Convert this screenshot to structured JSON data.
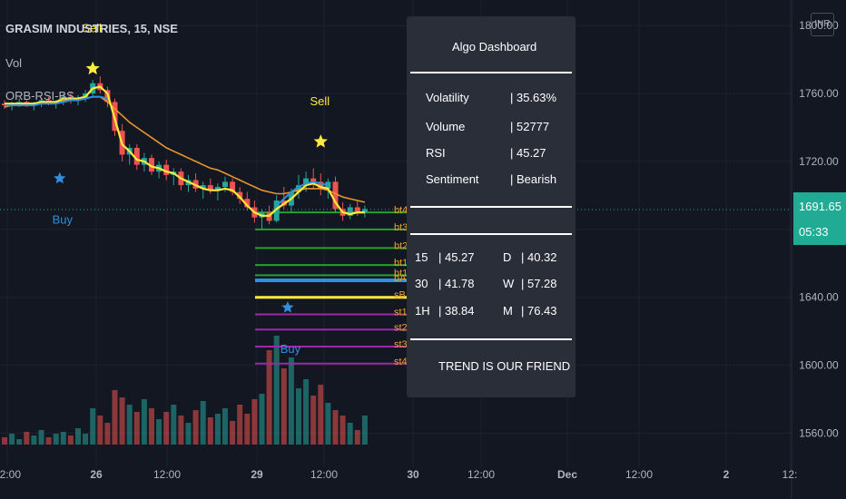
{
  "header": {
    "title": "GRASIM INDUSTRIES, 15, NSE",
    "volume_label": "Vol",
    "indicator_label": "ORB-RSI-BS"
  },
  "currency_badge": "INR",
  "price_tag": {
    "price": "1691.65",
    "countdown": "05:33"
  },
  "dashboard": {
    "title": "Algo Dashboard",
    "stats": [
      {
        "label": "Volatility",
        "value": "| 35.63%"
      },
      {
        "label": "Volume",
        "value": "| 52777"
      },
      {
        "label": "RSI",
        "value": "| 45.27"
      },
      {
        "label": "Sentiment",
        "value": "| Bearish"
      }
    ],
    "rsi_table": [
      {
        "tf": "15",
        "val": "| 45.27",
        "tf2": "D",
        "val2": "| 40.32"
      },
      {
        "tf": "30",
        "val": "| 41.78",
        "tf2": "W",
        "val2": "| 57.28"
      },
      {
        "tf": "1H",
        "val": "| 38.84",
        "tf2": "M",
        "val2": "| 76.43"
      }
    ],
    "footer": "TREND IS OUR FRIEND"
  },
  "colors": {
    "background": "#131722",
    "up": "#26a69a",
    "down": "#ef5350",
    "ema_orange": "#e8962c",
    "signal_yellow": "#ffeb3b",
    "blue_line": "#2f8fe0",
    "target_green": "#22a32a",
    "stop_purple": "#9c27b0",
    "level_label": "#f0a12a",
    "buy_marker": "#2f8fe0",
    "sell_marker": "#ffeb3b"
  },
  "chart_data": {
    "type": "candlestick",
    "title": "GRASIM INDUSTRIES, 15, NSE",
    "ylim": [
      1540,
      1815
    ],
    "y_ticks": [
      "1800.00",
      "1760.00",
      "1720.00",
      "1680.00",
      "1640.00",
      "1600.00",
      "1560.00"
    ],
    "x_ticks": [
      "12:00",
      "26",
      "12:00",
      "29",
      "12:00",
      "30",
      "12:00",
      "Dec",
      "12:00",
      "2",
      "12:"
    ],
    "last_price": 1691.65,
    "ohlc": [
      [
        1754,
        1756,
        1751,
        1753
      ],
      [
        1753,
        1755,
        1750,
        1754
      ],
      [
        1754,
        1757,
        1752,
        1755
      ],
      [
        1755,
        1756,
        1752,
        1753
      ],
      [
        1753,
        1755,
        1750,
        1754
      ],
      [
        1754,
        1757,
        1752,
        1756
      ],
      [
        1756,
        1758,
        1753,
        1754
      ],
      [
        1754,
        1756,
        1751,
        1755
      ],
      [
        1755,
        1760,
        1753,
        1758
      ],
      [
        1758,
        1761,
        1754,
        1756
      ],
      [
        1756,
        1759,
        1753,
        1757
      ],
      [
        1757,
        1762,
        1755,
        1760
      ],
      [
        1760,
        1768,
        1758,
        1766
      ],
      [
        1766,
        1770,
        1760,
        1762
      ],
      [
        1762,
        1764,
        1752,
        1755
      ],
      [
        1755,
        1757,
        1735,
        1738
      ],
      [
        1738,
        1742,
        1720,
        1724
      ],
      [
        1724,
        1730,
        1718,
        1728
      ],
      [
        1728,
        1730,
        1715,
        1718
      ],
      [
        1718,
        1725,
        1714,
        1722
      ],
      [
        1722,
        1724,
        1712,
        1714
      ],
      [
        1714,
        1720,
        1710,
        1718
      ],
      [
        1718,
        1721,
        1709,
        1712
      ],
      [
        1712,
        1716,
        1706,
        1714
      ],
      [
        1714,
        1716,
        1703,
        1706
      ],
      [
        1706,
        1712,
        1702,
        1709
      ],
      [
        1709,
        1713,
        1702,
        1704
      ],
      [
        1704,
        1708,
        1698,
        1706
      ],
      [
        1706,
        1710,
        1701,
        1703
      ],
      [
        1703,
        1707,
        1697,
        1705
      ],
      [
        1705,
        1711,
        1702,
        1708
      ],
      [
        1708,
        1710,
        1700,
        1702
      ],
      [
        1702,
        1705,
        1695,
        1698
      ],
      [
        1698,
        1702,
        1691,
        1693
      ],
      [
        1693,
        1697,
        1684,
        1687
      ],
      [
        1687,
        1692,
        1680,
        1690
      ],
      [
        1690,
        1694,
        1683,
        1685
      ],
      [
        1685,
        1700,
        1684,
        1697
      ],
      [
        1697,
        1705,
        1692,
        1694
      ],
      [
        1694,
        1704,
        1690,
        1702
      ],
      [
        1702,
        1712,
        1698,
        1706
      ],
      [
        1706,
        1714,
        1702,
        1710
      ],
      [
        1710,
        1716,
        1704,
        1708
      ],
      [
        1708,
        1713,
        1700,
        1704
      ],
      [
        1704,
        1710,
        1698,
        1708
      ],
      [
        1708,
        1711,
        1690,
        1692
      ],
      [
        1692,
        1696,
        1685,
        1688
      ],
      [
        1688,
        1695,
        1686,
        1693
      ],
      [
        1693,
        1697,
        1688,
        1690
      ],
      [
        1690,
        1694,
        1687,
        1692
      ]
    ],
    "volume": [
      4,
      6,
      3,
      7,
      5,
      8,
      4,
      6,
      7,
      5,
      9,
      6,
      20,
      16,
      12,
      30,
      26,
      22,
      18,
      25,
      20,
      14,
      18,
      22,
      16,
      12,
      19,
      24,
      15,
      17,
      20,
      13,
      22,
      17,
      25,
      28,
      52,
      60,
      42,
      48,
      31,
      36,
      27,
      33,
      23,
      19,
      16,
      12,
      8,
      16
    ],
    "ema_orange": [
      1752,
      1753,
      1753,
      1754,
      1754,
      1755,
      1755,
      1755,
      1756,
      1756,
      1757,
      1757,
      1758,
      1758,
      1755,
      1751,
      1747,
      1743,
      1740,
      1737,
      1734,
      1731,
      1728,
      1726,
      1724,
      1722,
      1720,
      1718,
      1716,
      1715,
      1713,
      1711,
      1709,
      1707,
      1705,
      1703,
      1702,
      1701,
      1701,
      1702,
      1703,
      1704,
      1704,
      1704,
      1703,
      1701,
      1699,
      1698,
      1697,
      1696
    ],
    "signal_line": [
      1754,
      1754,
      1754,
      1754,
      1754,
      1755,
      1755,
      1755,
      1757,
      1757,
      1757,
      1758,
      1763,
      1764,
      1760,
      1745,
      1730,
      1726,
      1721,
      1720,
      1717,
      1716,
      1714,
      1713,
      1710,
      1708,
      1706,
      1704,
      1703,
      1703,
      1704,
      1703,
      1699,
      1694,
      1690,
      1688,
      1688,
      1692,
      1695,
      1698,
      1702,
      1706,
      1707,
      1705,
      1704,
      1696,
      1690,
      1689,
      1690,
      1690
    ],
    "blue_line": [
      1753,
      1753,
      1753,
      1753,
      1753,
      1754,
      1754,
      1754,
      1755,
      1756,
      1756,
      1757,
      1758,
      1758,
      1757,
      null,
      null,
      null,
      null,
      null,
      null,
      null,
      null,
      null,
      null,
      null,
      null,
      null,
      null,
      null,
      null,
      null,
      null,
      null,
      null,
      null,
      null,
      1694,
      1698,
      1702,
      1705,
      1707,
      1708,
      1707,
      1706,
      null,
      null,
      null,
      null,
      null
    ],
    "levels": {
      "targets": [
        {
          "label": "bt4",
          "value": 1690
        },
        {
          "label": "bt3",
          "value": 1680
        },
        {
          "label": "bt2",
          "value": 1669
        },
        {
          "label": "bt1",
          "value": 1659
        },
        {
          "label": "bt1",
          "value": 1653
        }
      ],
      "entries": [
        {
          "label": "bA",
          "value": 1650
        },
        {
          "label": "sB",
          "value": 1640
        }
      ],
      "stops": [
        {
          "label": "st1",
          "value": 1630
        },
        {
          "label": "st2",
          "value": 1621
        },
        {
          "label": "st3",
          "value": 1611
        },
        {
          "label": "st4",
          "value": 1601
        }
      ]
    },
    "annotations": [
      {
        "text": "Sell",
        "x_index": 12,
        "price": 1796,
        "kind": "sell"
      },
      {
        "text": "Buy",
        "x_index": 8,
        "price": 1710,
        "kind": "buy"
      },
      {
        "text": "Sell",
        "x_index": 43,
        "price": 1753,
        "kind": "sell"
      },
      {
        "text": "Buy",
        "x_index": 39,
        "price": 1634,
        "kind": "buy"
      }
    ]
  }
}
